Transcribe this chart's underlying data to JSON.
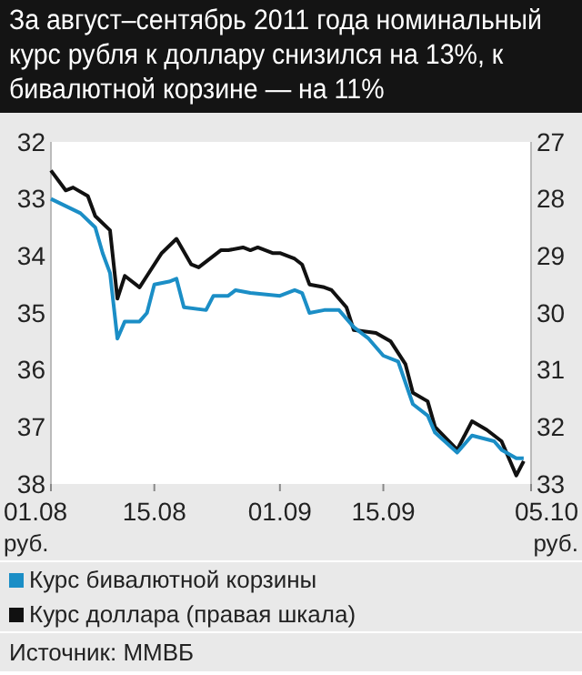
{
  "chart_data": {
    "type": "line",
    "title": "За август–сентябрь 2011 года номинальный курс рубля к доллару снизился на 13%, к бивалютной корзине — на 11%",
    "ylabel": "руб.",
    "y2label": "руб.",
    "xlim": [
      "2011-08-01",
      "2011-10-05"
    ],
    "xticks": [
      {
        "value": "2011-08-01",
        "label": "01.08"
      },
      {
        "value": "2011-08-15",
        "label": "15.08"
      },
      {
        "value": "2011-09-01",
        "label": "01.09"
      },
      {
        "value": "2011-09-15",
        "label": "15.09"
      },
      {
        "value": "2011-10-05",
        "label": "05.10"
      }
    ],
    "ylim": [
      38,
      32
    ],
    "yticks": [
      32,
      33,
      34,
      35,
      36,
      37,
      38
    ],
    "y2lim": [
      33,
      27
    ],
    "y2ticks": [
      27,
      28,
      29,
      30,
      31,
      32,
      33
    ],
    "legend": "bottom",
    "line_style": "solid",
    "marker": "none",
    "series": [
      {
        "name": "Курс бивалютной корзины",
        "color": "#1b8ec6",
        "x": [
          "2011-08-01",
          "2011-08-05",
          "2011-08-07",
          "2011-08-08",
          "2011-08-09",
          "2011-08-10",
          "2011-08-11",
          "2011-08-13",
          "2011-08-14",
          "2011-08-15",
          "2011-08-17",
          "2011-08-18",
          "2011-08-19",
          "2011-08-22",
          "2011-08-23",
          "2011-08-25",
          "2011-08-26",
          "2011-08-28",
          "2011-09-01",
          "2011-09-03",
          "2011-09-04",
          "2011-09-05",
          "2011-09-07",
          "2011-09-09",
          "2011-09-11",
          "2011-09-13",
          "2011-09-15",
          "2011-09-17",
          "2011-09-19",
          "2011-09-21",
          "2011-09-22",
          "2011-09-25",
          "2011-09-27",
          "2011-09-30",
          "2011-10-01",
          "2011-10-03",
          "2011-10-04"
        ],
        "values": [
          33.0,
          33.25,
          33.5,
          33.95,
          34.3,
          35.45,
          35.15,
          35.15,
          35.0,
          34.5,
          34.45,
          34.4,
          34.9,
          34.95,
          34.7,
          34.7,
          34.6,
          34.65,
          34.7,
          34.6,
          34.65,
          35.0,
          34.95,
          34.95,
          35.25,
          35.45,
          35.75,
          35.85,
          36.6,
          36.8,
          37.1,
          37.45,
          37.15,
          37.25,
          37.4,
          37.55,
          37.55
        ]
      },
      {
        "name": "Курс доллара (правая шкала)",
        "color": "#111111",
        "axis": "y2",
        "x": [
          "2011-08-01",
          "2011-08-03",
          "2011-08-04",
          "2011-08-06",
          "2011-08-07",
          "2011-08-09",
          "2011-08-10",
          "2011-08-11",
          "2011-08-13",
          "2011-08-14",
          "2011-08-16",
          "2011-08-18",
          "2011-08-20",
          "2011-08-21",
          "2011-08-22",
          "2011-08-24",
          "2011-08-25",
          "2011-08-27",
          "2011-08-28",
          "2011-08-29",
          "2011-08-31",
          "2011-09-01",
          "2011-09-03",
          "2011-09-04",
          "2011-09-05",
          "2011-09-07",
          "2011-09-08",
          "2011-09-10",
          "2011-09-11",
          "2011-09-14",
          "2011-09-16",
          "2011-09-18",
          "2011-09-19",
          "2011-09-21",
          "2011-09-22",
          "2011-09-25",
          "2011-09-27",
          "2011-09-29",
          "2011-10-01",
          "2011-10-03",
          "2011-10-04"
        ],
        "values": [
          27.5,
          27.85,
          27.8,
          27.95,
          28.3,
          28.55,
          29.75,
          29.35,
          29.55,
          29.35,
          28.95,
          28.7,
          29.15,
          29.2,
          29.1,
          28.9,
          28.9,
          28.85,
          28.9,
          28.85,
          28.95,
          28.95,
          29.05,
          29.15,
          29.5,
          29.55,
          29.6,
          29.9,
          30.3,
          30.35,
          30.5,
          30.9,
          31.4,
          31.55,
          32.0,
          32.4,
          31.9,
          32.05,
          32.25,
          32.85,
          32.6
        ]
      }
    ],
    "annotations": [
      "Источник: ММВБ"
    ]
  }
}
